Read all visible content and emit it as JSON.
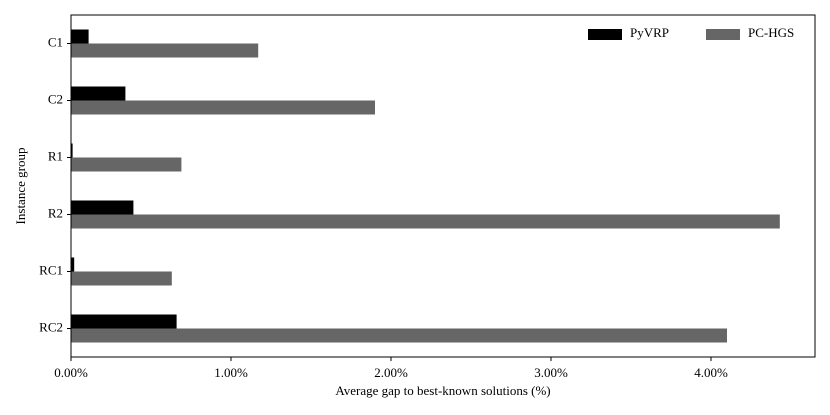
{
  "chart_data": {
    "type": "barh",
    "xlabel": "Average gap to best-known solutions (%)",
    "ylabel": "Instance group",
    "categories": [
      "C1",
      "C2",
      "R1",
      "R2",
      "RC1",
      "RC2"
    ],
    "series": [
      {
        "name": "PyVRP",
        "color": "#000000",
        "values": [
          0.11,
          0.34,
          0.01,
          0.39,
          0.02,
          0.66
        ]
      },
      {
        "name": "PC-HGS",
        "color": "#666666",
        "values": [
          1.17,
          1.9,
          0.69,
          4.43,
          0.63,
          4.1
        ]
      }
    ],
    "xlim": [
      0,
      4.65
    ],
    "xticks": [
      {
        "value": 0,
        "label": "0.00%"
      },
      {
        "value": 1,
        "label": "1.00%"
      },
      {
        "value": 2,
        "label": "2.00%"
      },
      {
        "value": 3,
        "label": "3.00%"
      },
      {
        "value": 4,
        "label": "4.00%"
      }
    ],
    "legend": "upper right",
    "grid": false
  }
}
